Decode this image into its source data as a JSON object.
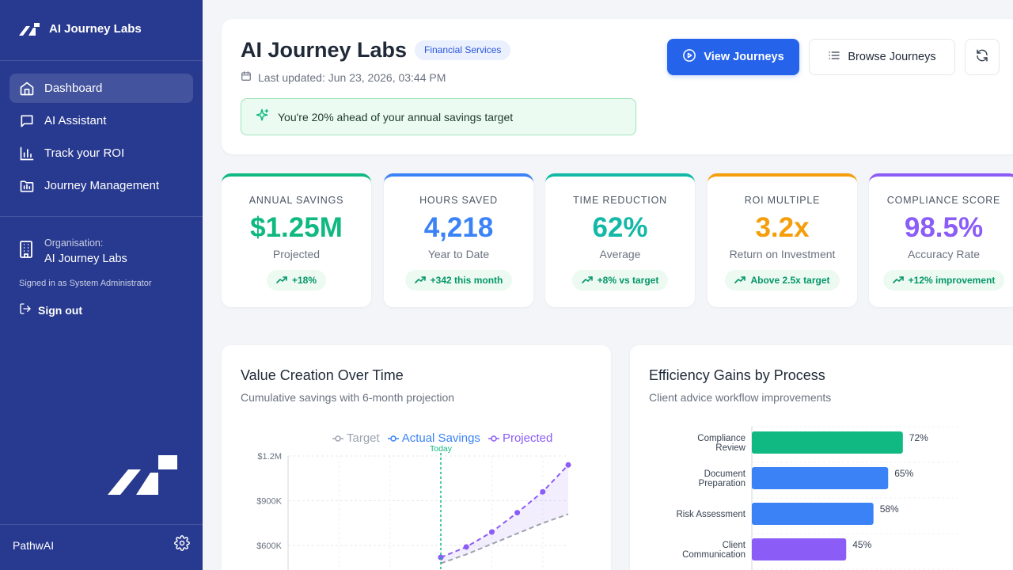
{
  "sidebar": {
    "brand": "AI Journey Labs",
    "nav": [
      {
        "label": "Dashboard",
        "icon": "home-icon",
        "active": true
      },
      {
        "label": "AI Assistant",
        "icon": "chat-icon",
        "active": false
      },
      {
        "label": "Track your ROI",
        "icon": "bar-chart-icon",
        "active": false
      },
      {
        "label": "Journey Management",
        "icon": "folder-icon",
        "active": false
      }
    ],
    "org_label": "Organisation:",
    "org_name": "AI Journey Labs",
    "signed_in": "Signed in as System Administrator",
    "sign_out": "Sign out",
    "footer_label": "PathwAI"
  },
  "header": {
    "title": "AI Journey Labs",
    "industry": "Financial Services",
    "last_updated": "Last updated: Jun 23, 2026, 03:44 PM",
    "alert": "You're 20% ahead of your annual savings target",
    "view_journeys": "View Journeys",
    "browse_journeys": "Browse Journeys"
  },
  "kpis": [
    {
      "label": "ANNUAL SAVINGS",
      "value": "$1.25M",
      "sub": "Projected",
      "chip": "+18%",
      "color": "#10b981"
    },
    {
      "label": "HOURS SAVED",
      "value": "4,218",
      "sub": "Year to Date",
      "chip": "+342 this month",
      "color": "#3b82f6"
    },
    {
      "label": "TIME REDUCTION",
      "value": "62%",
      "sub": "Average",
      "chip": "+8% vs target",
      "color": "#14b8a6"
    },
    {
      "label": "ROI MULTIPLE",
      "value": "3.2x",
      "sub": "Return on Investment",
      "chip": "Above 2.5x target",
      "color": "#f59e0b"
    },
    {
      "label": "COMPLIANCE SCORE",
      "value": "98.5%",
      "sub": "Accuracy Rate",
      "chip": "+12% improvement",
      "color": "#8b5cf6"
    }
  ],
  "colors": {
    "accent": "#2563eb",
    "sidebar": "#283a8f",
    "success": "#10b981"
  },
  "value_chart": {
    "title": "Value Creation Over Time",
    "subtitle": "Cumulative savings with 6-month projection",
    "legend": [
      "Target",
      "Actual Savings",
      "Projected"
    ],
    "today_label": "Today",
    "y_ticks": [
      "$1.2M",
      "$900K",
      "$600K"
    ]
  },
  "efficiency_chart": {
    "title": "Efficiency Gains by Process",
    "subtitle": "Client advice workflow improvements"
  },
  "chart_data": [
    {
      "type": "line",
      "title": "Value Creation Over Time",
      "subtitle": "Cumulative savings with 6-month projection",
      "ylim": [
        0,
        1200000
      ],
      "y_ticks": [
        600000,
        900000,
        1200000
      ],
      "annotations": [
        "Today"
      ],
      "series": [
        {
          "name": "Target",
          "color": "#9ca3af",
          "style": "dashed",
          "points": [
            [
              0,
              480000
            ],
            [
              1,
              540000
            ],
            [
              2,
              610000
            ],
            [
              3,
              680000
            ],
            [
              4,
              750000
            ],
            [
              5,
              810000
            ]
          ]
        },
        {
          "name": "Actual Savings",
          "color": "#3b82f6",
          "style": "solid",
          "points": [
            [
              0,
              520000
            ]
          ]
        },
        {
          "name": "Projected",
          "color": "#8b5cf6",
          "style": "dashed",
          "points": [
            [
              0,
              520000
            ],
            [
              1,
              590000
            ],
            [
              2,
              690000
            ],
            [
              3,
              820000
            ],
            [
              4,
              960000
            ],
            [
              5,
              1140000
            ]
          ]
        }
      ]
    },
    {
      "type": "bar",
      "orientation": "horizontal",
      "title": "Efficiency Gains by Process",
      "subtitle": "Client advice workflow improvements",
      "xlim": [
        0,
        100
      ],
      "categories": [
        [
          "Compliance",
          "Review"
        ],
        [
          "Document",
          "Preparation"
        ],
        [
          "Risk Assessment"
        ],
        [
          "Client",
          "Communication"
        ]
      ],
      "values": [
        72,
        65,
        58,
        45
      ],
      "labels": [
        "72%",
        "65%",
        "58%",
        "45%"
      ],
      "colors": [
        "#10b981",
        "#3b82f6",
        "#3b82f6",
        "#8b5cf6"
      ]
    }
  ]
}
